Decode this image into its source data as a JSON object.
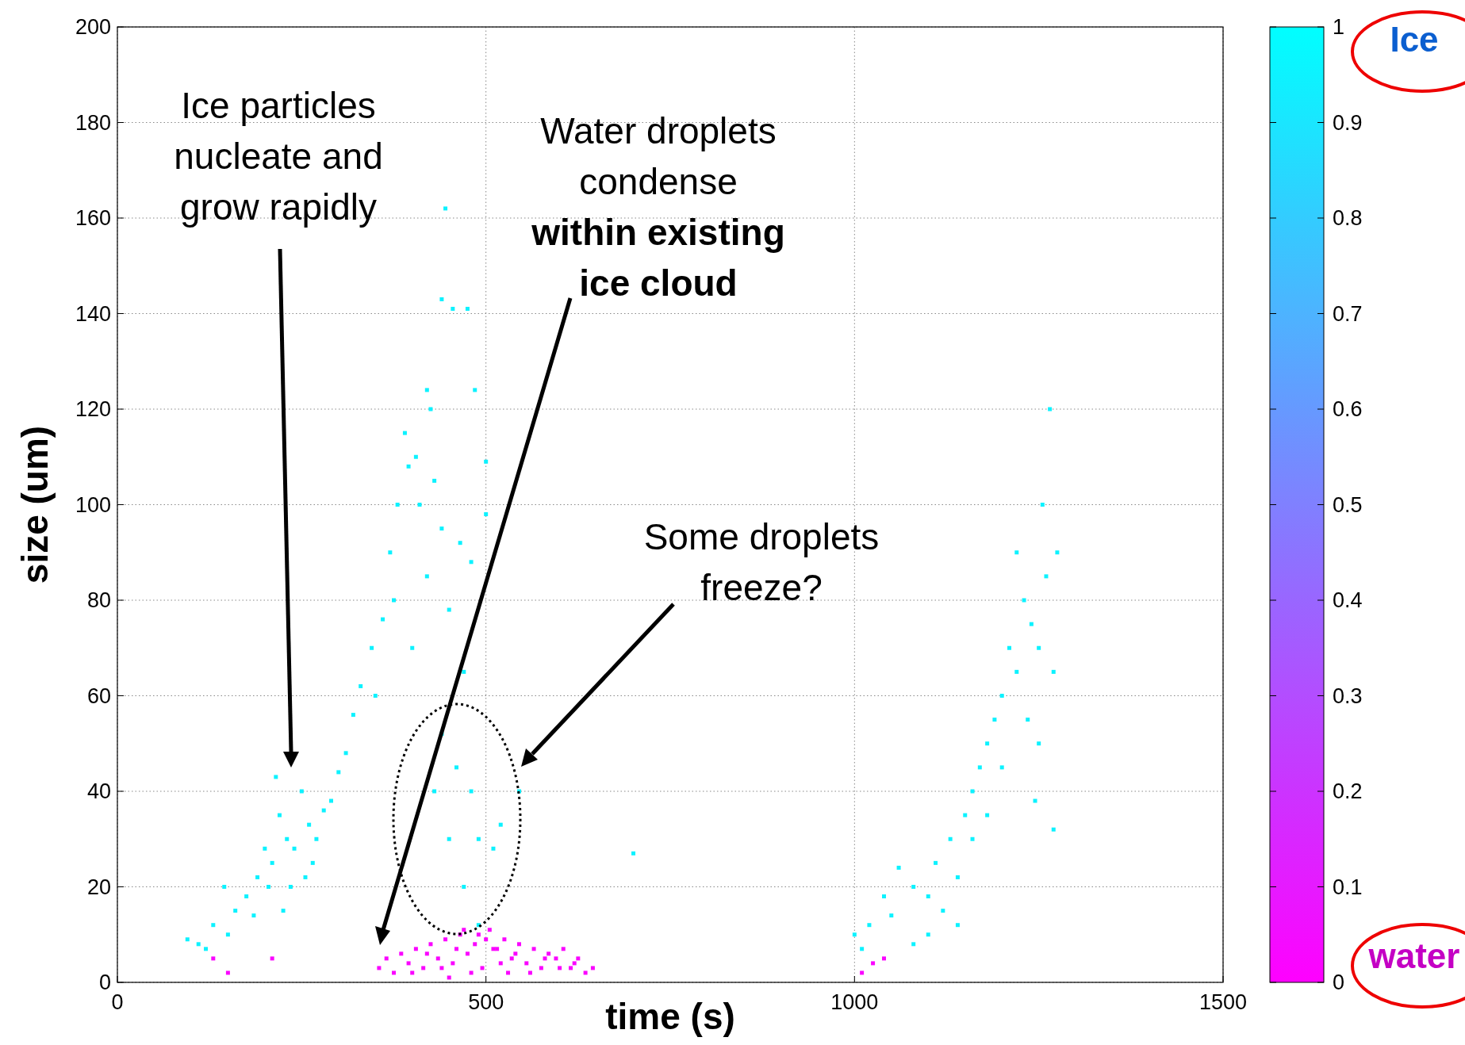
{
  "chart_data": {
    "type": "scatter",
    "xlabel": "time (s)",
    "ylabel": "size (um)",
    "xlim": [
      0,
      1500
    ],
    "xticks": [
      0,
      500,
      1000,
      1500
    ],
    "ylim": [
      0,
      200
    ],
    "yticks": [
      0,
      20,
      40,
      60,
      80,
      100,
      120,
      140,
      160,
      180,
      200
    ],
    "grid": true,
    "marker": "square",
    "clim": [
      0,
      1
    ],
    "cticks": [
      0,
      0.1,
      0.2,
      0.3,
      0.4,
      0.5,
      0.6,
      0.7,
      0.8,
      0.9,
      1
    ],
    "annotations": [
      "Ice particles nucleate and grow rapidly",
      "Water droplets condense",
      "within existing ice cloud",
      "Some droplets freeze?",
      "Ice",
      "water"
    ],
    "series": [
      {
        "x": [
          95,
          110,
          120,
          130,
          145,
          150,
          160,
          175,
          185,
          190,
          200,
          205,
          210,
          215,
          220,
          225,
          230,
          235,
          240,
          250,
          255,
          260,
          265,
          270,
          280,
          290,
          300,
          310,
          320,
          330,
          345,
          350,
          360,
          370,
          375,
          380,
          390,
          395,
          400,
          405,
          410,
          420,
          420,
          425,
          430,
          430,
          440,
          440,
          440,
          445,
          450,
          450,
          455,
          460,
          465,
          470,
          470,
          475,
          480,
          480,
          485,
          490,
          490,
          500,
          500,
          510,
          520,
          545,
          700,
          1000,
          1010,
          1020,
          1040,
          1050,
          1060,
          1080,
          1080,
          1100,
          1100,
          1110,
          1120,
          1130,
          1140,
          1140,
          1150,
          1160,
          1160,
          1170,
          1180,
          1180,
          1190,
          1200,
          1200,
          1210,
          1220,
          1220,
          1230,
          1235,
          1240,
          1245,
          1250,
          1250,
          1255,
          1260,
          1265,
          1270,
          1270,
          1275
        ],
        "values": [
          9,
          8,
          7,
          12,
          20,
          10,
          15,
          18,
          14,
          22,
          28,
          20,
          25,
          43,
          35,
          15,
          30,
          20,
          28,
          40,
          22,
          33,
          25,
          30,
          36,
          38,
          44,
          48,
          56,
          62,
          70,
          60,
          76,
          90,
          80,
          100,
          115,
          108,
          70,
          110,
          100,
          124,
          85,
          120,
          105,
          40,
          95,
          52,
          143,
          162,
          78,
          30,
          141,
          45,
          92,
          65,
          20,
          141,
          88,
          40,
          124,
          30,
          12,
          109,
          98,
          28,
          33,
          40,
          27,
          10,
          7,
          12,
          18,
          14,
          24,
          20,
          8,
          18,
          10,
          25,
          15,
          30,
          22,
          12,
          35,
          40,
          30,
          45,
          50,
          35,
          55,
          60,
          45,
          70,
          65,
          90,
          80,
          55,
          75,
          38,
          70,
          50,
          100,
          85,
          120,
          65,
          32,
          90
        ],
        "cvalues": [
          0.95,
          0.95,
          0.95,
          0.95,
          0.95,
          0.95,
          0.95,
          0.95,
          0.95,
          0.95,
          0.95,
          0.95,
          0.95,
          0.95,
          0.95,
          0.95,
          0.95,
          0.95,
          0.95,
          0.95,
          0.95,
          0.95,
          0.95,
          0.95,
          0.95,
          0.95,
          0.95,
          0.95,
          0.95,
          0.95,
          0.95,
          0.95,
          0.95,
          0.95,
          0.95,
          0.95,
          0.95,
          0.95,
          0.95,
          0.95,
          0.95,
          0.95,
          0.95,
          0.95,
          0.95,
          0.95,
          0.95,
          0.95,
          0.95,
          0.95,
          0.95,
          0.95,
          0.95,
          0.95,
          0.95,
          0.95,
          0.95,
          0.95,
          0.95,
          0.95,
          0.95,
          0.95,
          0.95,
          0.95,
          0.95,
          0.95,
          0.95,
          0.95,
          0.95,
          0.95,
          0.95,
          0.95,
          0.95,
          0.95,
          0.95,
          0.95,
          0.95,
          0.95,
          0.95,
          0.95,
          0.95,
          0.95,
          0.95,
          0.95,
          0.95,
          0.95,
          0.95,
          0.95,
          0.95,
          0.95,
          0.95,
          0.95,
          0.95,
          0.95,
          0.95,
          0.95,
          0.95,
          0.95,
          0.95,
          0.95,
          0.95,
          0.95,
          0.95,
          0.95,
          0.95,
          0.95,
          0.95,
          0.95
        ]
      },
      {
        "x": [
          130,
          150,
          210,
          1010,
          1025,
          1040,
          355,
          365,
          375,
          385,
          395,
          405,
          415,
          425,
          435,
          445,
          455,
          465,
          475,
          485,
          495,
          505,
          515,
          525,
          535,
          545,
          555,
          565,
          575,
          585,
          595,
          605,
          615,
          625,
          635,
          645,
          400,
          420,
          440,
          460,
          480,
          500,
          520,
          540,
          560,
          580,
          600,
          620,
          450,
          470,
          490,
          510,
          530
        ],
        "values": [
          5,
          2,
          5,
          2,
          4,
          5,
          3,
          5,
          2,
          6,
          4,
          7,
          3,
          8,
          5,
          9,
          4,
          10,
          6,
          8,
          3,
          11,
          7,
          9,
          5,
          8,
          4,
          7,
          3,
          6,
          5,
          7,
          3,
          5,
          2,
          3,
          2,
          6,
          3,
          7,
          2,
          9,
          4,
          6,
          2,
          5,
          3,
          4,
          1,
          11,
          10,
          7,
          2
        ],
        "cvalues": [
          0.02,
          0.02,
          0.02,
          0.02,
          0.02,
          0.02,
          0.02,
          0.02,
          0.02,
          0.02,
          0.02,
          0.02,
          0.02,
          0.02,
          0.02,
          0.02,
          0.02,
          0.02,
          0.02,
          0.02,
          0.02,
          0.02,
          0.02,
          0.02,
          0.02,
          0.02,
          0.02,
          0.02,
          0.02,
          0.02,
          0.02,
          0.02,
          0.02,
          0.02,
          0.02,
          0.02,
          0.02,
          0.02,
          0.02,
          0.02,
          0.02,
          0.02,
          0.02,
          0.02,
          0.02,
          0.02,
          0.02,
          0.02,
          0.02,
          0.02,
          0.02,
          0.02,
          0.02
        ]
      }
    ]
  }
}
